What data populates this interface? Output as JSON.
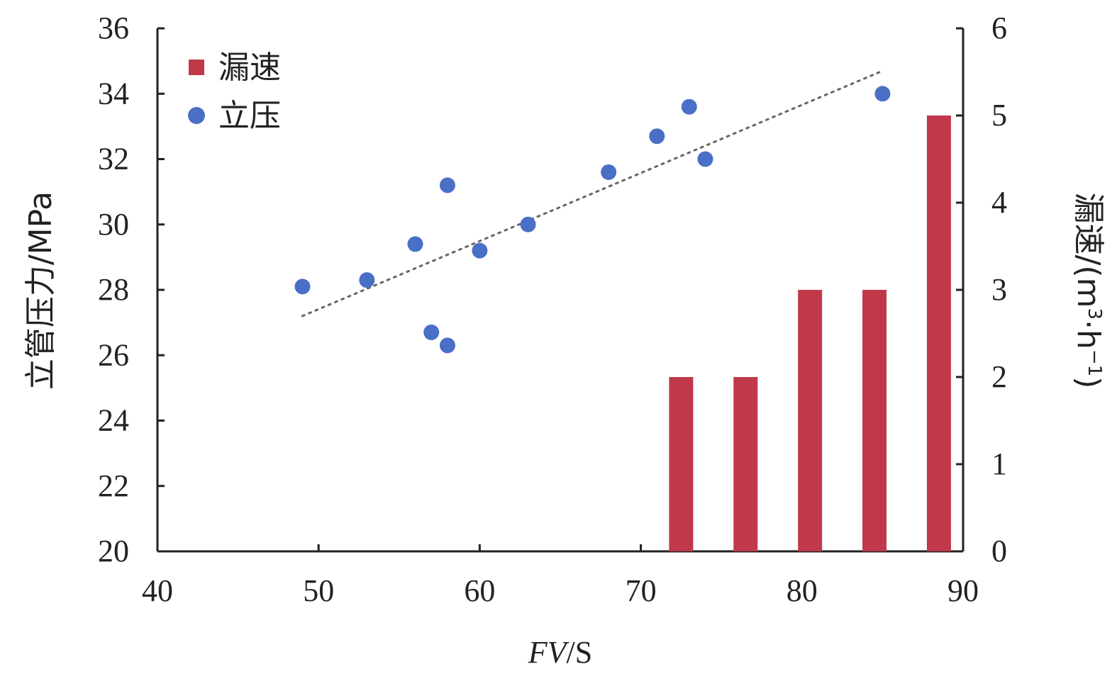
{
  "chart_data": {
    "type": "bar+scatter",
    "x": {
      "label_italic": "FV",
      "label_rest": "/S",
      "range": [
        40,
        90
      ],
      "ticks": [
        "40",
        "50",
        "60",
        "70",
        "80",
        "90"
      ]
    },
    "y_left": {
      "label": "立管压力/MPa",
      "range": [
        20,
        36
      ],
      "ticks": [
        "20",
        "22",
        "24",
        "26",
        "28",
        "30",
        "32",
        "34",
        "36"
      ]
    },
    "y_right": {
      "label_main": "漏速/(m",
      "label_sup1": "3",
      "label_mid": "·h",
      "label_sup2": "−1",
      "label_end": ")",
      "range": [
        0,
        6
      ],
      "ticks": [
        "0",
        "1",
        "2",
        "3",
        "4",
        "5",
        "6"
      ]
    },
    "legend": {
      "position": "top-left",
      "items": [
        {
          "name": "漏速",
          "marker": "square",
          "color": "#c0394a"
        },
        {
          "name": "立压",
          "marker": "circle",
          "color": "#4a6fc7"
        }
      ]
    },
    "bar_series": {
      "name": "漏速",
      "color": "#c0394a",
      "x": [
        72.5,
        76.5,
        80.5,
        84.5,
        88.5
      ],
      "values": [
        2,
        2,
        3,
        3,
        5
      ]
    },
    "scatter_series": {
      "name": "立压",
      "color": "#4a6fc7",
      "points": [
        [
          49,
          28.1
        ],
        [
          53,
          28.3
        ],
        [
          56,
          29.4
        ],
        [
          57,
          26.7
        ],
        [
          58,
          26.3
        ],
        [
          58,
          31.2
        ],
        [
          60,
          29.2
        ],
        [
          63,
          30.0
        ],
        [
          68,
          31.6
        ],
        [
          71,
          32.7
        ],
        [
          73,
          33.6
        ],
        [
          74,
          32.0
        ],
        [
          85,
          34.0
        ]
      ]
    },
    "trendline": {
      "type": "linear",
      "style": "dotted",
      "from": [
        49,
        27.2
      ],
      "to": [
        85,
        34.7
      ]
    }
  }
}
